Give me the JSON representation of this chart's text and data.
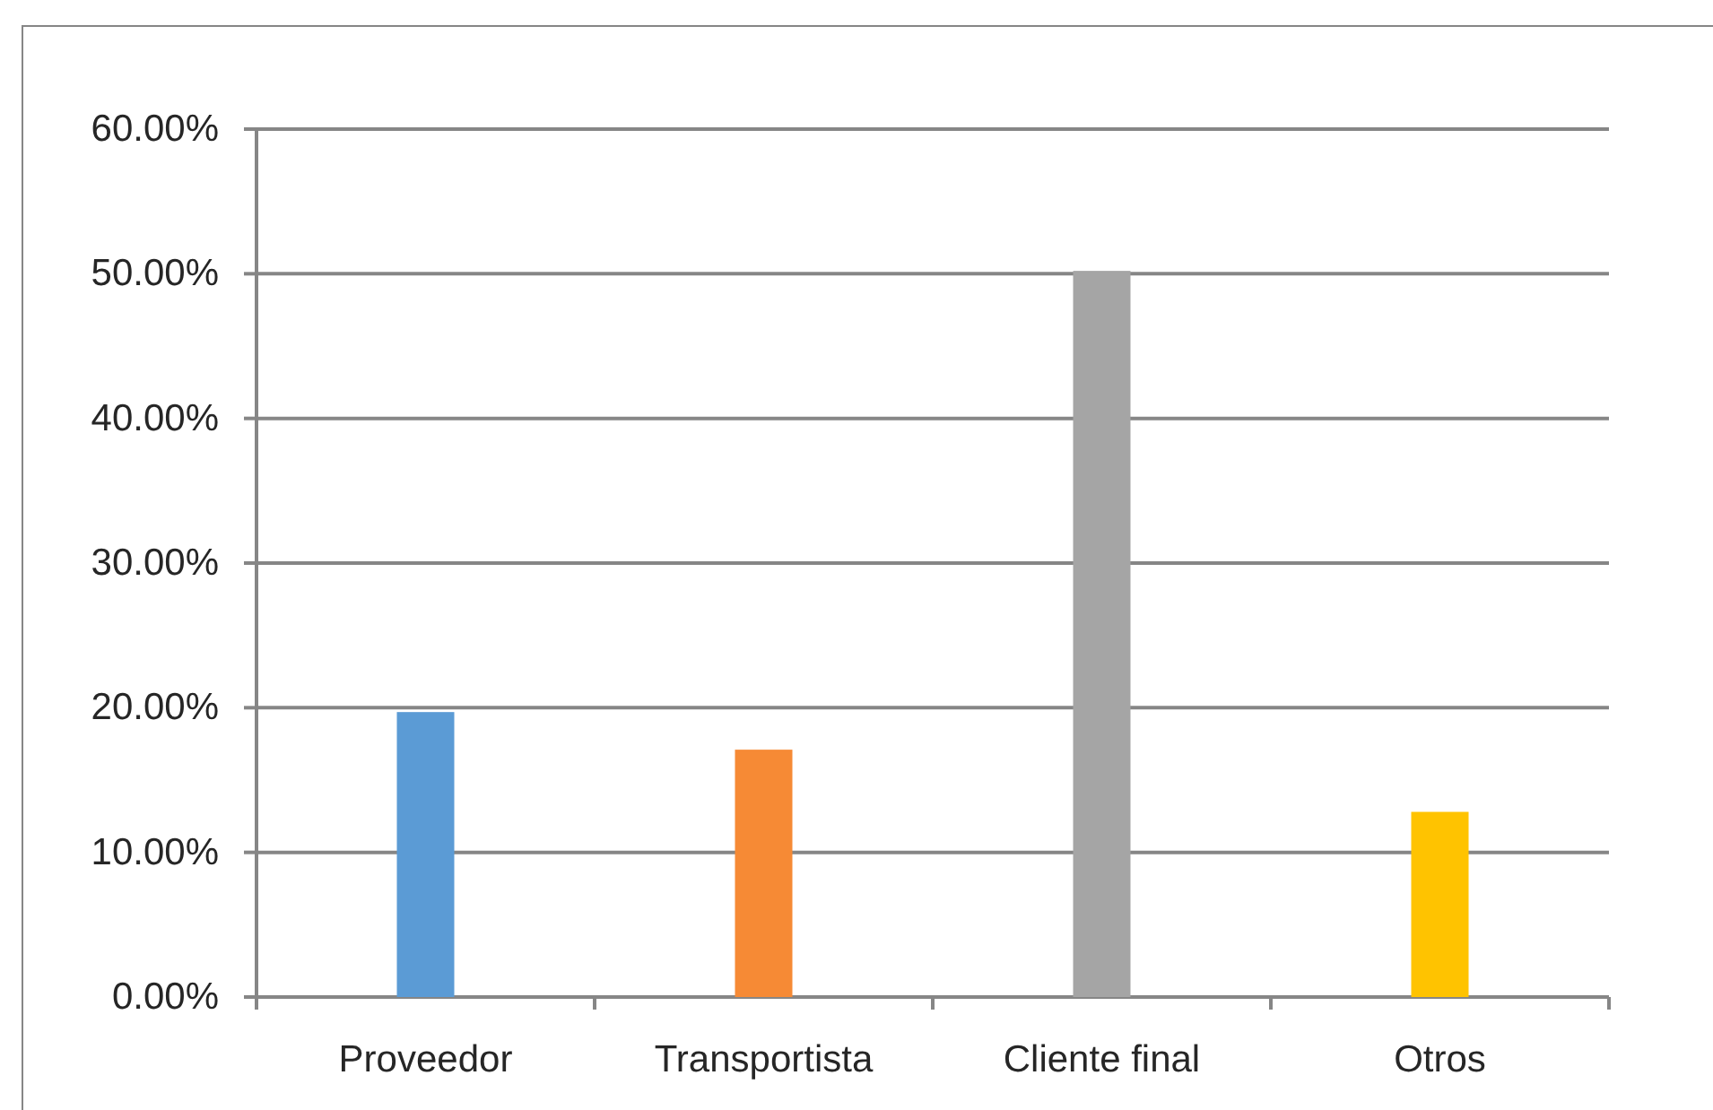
{
  "chart_data": {
    "type": "bar",
    "categories": [
      "Proveedor",
      "Transportista",
      "Cliente final",
      "Otros"
    ],
    "values": [
      19.7,
      17.1,
      50.2,
      12.8
    ],
    "colors": [
      "#5b9bd5",
      "#f68a35",
      "#a5a5a5",
      "#ffc300"
    ],
    "ylim": [
      0,
      60
    ],
    "yticks": [
      {
        "value": 0,
        "label": "0.00%"
      },
      {
        "value": 10,
        "label": "10.00%"
      },
      {
        "value": 20,
        "label": "20.00%"
      },
      {
        "value": 30,
        "label": "30.00%"
      },
      {
        "value": 40,
        "label": "40.00%"
      },
      {
        "value": 50,
        "label": "50.00%"
      },
      {
        "value": 60,
        "label": "60.00%"
      }
    ],
    "grid": "y"
  }
}
